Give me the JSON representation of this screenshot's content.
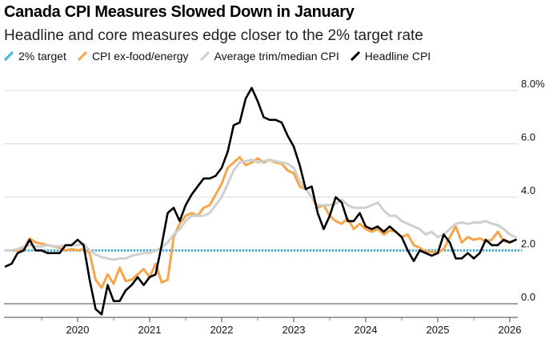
{
  "chart_data": {
    "type": "line",
    "title": "Canada CPI Measures Slowed Down in January",
    "subtitle": "Headline and core measures edge closer to the 2% target rate",
    "y_ticks": [
      "8.0%",
      "6.0",
      "4.0",
      "2.0",
      "0.0"
    ],
    "x_ticks": [
      "2020",
      "2021",
      "2022",
      "2023",
      "2024",
      "2025",
      "2026"
    ],
    "ylim": [
      -0.5,
      8.4
    ],
    "xlim": [
      2019.0,
      2026.17
    ],
    "grid": true,
    "legend_position": "top-left",
    "target": {
      "name": "2% target",
      "value": 2.0,
      "color": "#3bb3e6"
    },
    "series": [
      {
        "name": "CPI ex-food/energy",
        "color": "#f5a54a",
        "x": [
          2019.0,
          2019.083,
          2019.167,
          2019.25,
          2019.333,
          2019.417,
          2019.5,
          2019.583,
          2019.667,
          2019.75,
          2019.833,
          2019.917,
          2020.0,
          2020.083,
          2020.167,
          2020.25,
          2020.333,
          2020.417,
          2020.5,
          2020.583,
          2020.667,
          2020.75,
          2020.833,
          2020.917,
          2021.0,
          2021.083,
          2021.167,
          2021.25,
          2021.333,
          2021.417,
          2021.5,
          2021.583,
          2021.667,
          2021.75,
          2021.833,
          2021.917,
          2022.0,
          2022.083,
          2022.167,
          2022.25,
          2022.333,
          2022.417,
          2022.5,
          2022.583,
          2022.667,
          2022.75,
          2022.833,
          2022.917,
          2023.0,
          2023.083,
          2023.167,
          2023.25,
          2023.333,
          2023.417,
          2023.5,
          2023.583,
          2023.667,
          2023.75,
          2023.833,
          2023.917,
          2024.0,
          2024.083,
          2024.167,
          2024.25,
          2024.333,
          2024.417,
          2024.5,
          2024.583,
          2024.667,
          2024.75,
          2024.833,
          2024.917,
          2025.0,
          2025.083,
          2025.167,
          2025.25,
          2025.333,
          2025.417,
          2025.5,
          2025.583,
          2025.667,
          2025.75,
          2025.833,
          2025.917,
          2026.0,
          2026.083
        ],
        "values": [
          2.0,
          2.0,
          2.0,
          2.05,
          2.45,
          2.3,
          2.25,
          2.2,
          2.15,
          2.1,
          2.0,
          2.05,
          2.0,
          2.05,
          1.9,
          0.9,
          0.6,
          1.1,
          0.75,
          1.35,
          0.85,
          0.9,
          1.1,
          1.3,
          1.0,
          1.5,
          0.8,
          0.9,
          2.5,
          3.0,
          3.3,
          3.4,
          3.3,
          3.6,
          3.7,
          4.1,
          4.5,
          5.1,
          5.3,
          5.5,
          5.2,
          5.3,
          5.45,
          5.3,
          5.4,
          5.3,
          5.25,
          5.0,
          4.9,
          4.4,
          4.3,
          4.0,
          3.6,
          3.7,
          3.3,
          3.1,
          3.0,
          3.2,
          2.8,
          3.0,
          2.8,
          2.7,
          2.8,
          2.6,
          2.75,
          2.7,
          2.5,
          2.6,
          2.2,
          2.1,
          1.95,
          1.95,
          1.9,
          2.05,
          2.5,
          2.9,
          2.3,
          2.5,
          2.4,
          2.45,
          2.35,
          2.4,
          2.7,
          2.35,
          2.3,
          2.4
        ]
      },
      {
        "name": "Average trim/median CPI",
        "color": "#cfcfcf",
        "x": [
          2019.0,
          2019.083,
          2019.167,
          2019.25,
          2019.333,
          2019.417,
          2019.5,
          2019.583,
          2019.667,
          2019.75,
          2019.833,
          2019.917,
          2020.0,
          2020.083,
          2020.167,
          2020.25,
          2020.333,
          2020.417,
          2020.5,
          2020.583,
          2020.667,
          2020.75,
          2020.833,
          2020.917,
          2021.0,
          2021.083,
          2021.167,
          2021.25,
          2021.333,
          2021.417,
          2021.5,
          2021.583,
          2021.667,
          2021.75,
          2021.833,
          2021.917,
          2022.0,
          2022.083,
          2022.167,
          2022.25,
          2022.333,
          2022.417,
          2022.5,
          2022.583,
          2022.667,
          2022.75,
          2022.833,
          2022.917,
          2023.0,
          2023.083,
          2023.167,
          2023.25,
          2023.333,
          2023.417,
          2023.5,
          2023.583,
          2023.667,
          2023.75,
          2023.833,
          2023.917,
          2024.0,
          2024.083,
          2024.167,
          2024.25,
          2024.333,
          2024.417,
          2024.5,
          2024.583,
          2024.667,
          2024.75,
          2024.833,
          2024.917,
          2025.0,
          2025.083,
          2025.167,
          2025.25,
          2025.333,
          2025.417,
          2025.5,
          2025.583,
          2025.667,
          2025.75,
          2025.833,
          2025.917,
          2026.0,
          2026.083
        ],
        "values": [
          2.0,
          2.0,
          2.05,
          2.15,
          2.2,
          2.15,
          2.15,
          2.2,
          2.15,
          2.15,
          2.2,
          2.2,
          2.2,
          2.25,
          2.0,
          1.85,
          1.75,
          1.7,
          1.65,
          1.7,
          1.7,
          1.8,
          1.85,
          1.9,
          1.9,
          2.0,
          2.1,
          2.3,
          2.6,
          2.8,
          3.1,
          3.3,
          3.3,
          3.3,
          3.4,
          3.7,
          4.0,
          4.5,
          5.0,
          5.3,
          5.35,
          5.4,
          5.3,
          5.35,
          5.4,
          5.35,
          5.3,
          5.25,
          5.1,
          4.6,
          4.3,
          4.0,
          3.7,
          3.7,
          3.7,
          3.75,
          3.9,
          3.7,
          3.6,
          3.6,
          3.6,
          3.7,
          3.8,
          3.5,
          3.3,
          3.3,
          3.1,
          3.0,
          2.9,
          2.8,
          2.6,
          2.7,
          2.5,
          2.6,
          2.8,
          3.0,
          3.05,
          3.0,
          3.05,
          3.05,
          3.1,
          3.0,
          2.95,
          2.8,
          2.6,
          2.5
        ]
      },
      {
        "name": "Headline CPI",
        "color": "#000000",
        "x": [
          2019.0,
          2019.083,
          2019.167,
          2019.25,
          2019.333,
          2019.417,
          2019.5,
          2019.583,
          2019.667,
          2019.75,
          2019.833,
          2019.917,
          2020.0,
          2020.083,
          2020.167,
          2020.25,
          2020.333,
          2020.417,
          2020.5,
          2020.583,
          2020.667,
          2020.75,
          2020.833,
          2020.917,
          2021.0,
          2021.083,
          2021.167,
          2021.25,
          2021.333,
          2021.417,
          2021.5,
          2021.583,
          2021.667,
          2021.75,
          2021.833,
          2021.917,
          2022.0,
          2022.083,
          2022.167,
          2022.25,
          2022.333,
          2022.417,
          2022.5,
          2022.583,
          2022.667,
          2022.75,
          2022.833,
          2022.917,
          2023.0,
          2023.083,
          2023.167,
          2023.25,
          2023.333,
          2023.417,
          2023.5,
          2023.583,
          2023.667,
          2023.75,
          2023.833,
          2023.917,
          2024.0,
          2024.083,
          2024.167,
          2024.25,
          2024.333,
          2024.417,
          2024.5,
          2024.583,
          2024.667,
          2024.75,
          2024.833,
          2024.917,
          2025.0,
          2025.083,
          2025.167,
          2025.25,
          2025.333,
          2025.417,
          2025.5,
          2025.583,
          2025.667,
          2025.75,
          2025.833,
          2025.917,
          2026.0,
          2026.083
        ],
        "values": [
          1.4,
          1.5,
          1.9,
          2.0,
          2.4,
          2.0,
          2.0,
          1.9,
          1.9,
          1.9,
          2.2,
          2.2,
          2.4,
          2.2,
          0.9,
          -0.2,
          -0.4,
          0.7,
          0.1,
          0.1,
          0.5,
          0.7,
          1.0,
          0.7,
          1.0,
          1.1,
          2.2,
          3.4,
          3.6,
          3.1,
          3.7,
          4.1,
          4.4,
          4.7,
          4.7,
          4.8,
          5.1,
          5.7,
          6.7,
          6.8,
          7.7,
          8.1,
          7.6,
          7.0,
          6.9,
          6.9,
          6.8,
          6.3,
          5.9,
          5.2,
          4.3,
          4.4,
          3.4,
          2.8,
          3.3,
          4.0,
          3.8,
          3.1,
          3.1,
          3.4,
          2.9,
          2.8,
          2.9,
          2.7,
          2.9,
          2.7,
          2.5,
          2.0,
          1.6,
          2.0,
          1.9,
          1.8,
          1.9,
          2.6,
          2.3,
          1.7,
          1.7,
          1.9,
          1.7,
          1.9,
          2.4,
          2.2,
          2.2,
          2.4,
          2.3,
          2.4
        ]
      }
    ]
  }
}
